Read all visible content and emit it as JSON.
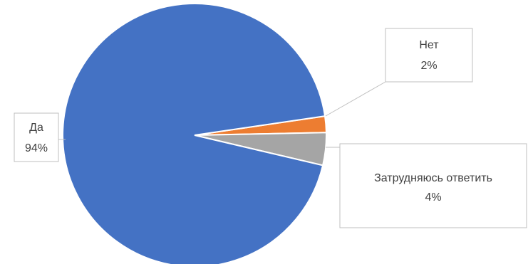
{
  "chart_data": {
    "type": "pie",
    "title": "",
    "slices": [
      {
        "name": "Да",
        "value": 94,
        "label": "94%",
        "color": "#4472C4"
      },
      {
        "name": "Нет",
        "value": 2,
        "label": "2%",
        "color": "#ED7D31"
      },
      {
        "name": "Затрудняюсь ответить",
        "value": 4,
        "label": "4%",
        "color": "#A5A5A5"
      }
    ],
    "legend": "none",
    "data_labels": "callouts with category name and percent"
  }
}
